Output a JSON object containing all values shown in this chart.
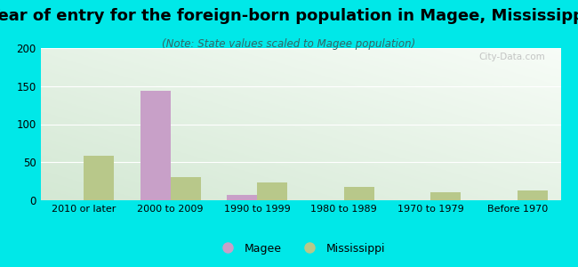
{
  "categories": [
    "2010 or later",
    "2000 to 2009",
    "1990 to 1999",
    "1980 to 1989",
    "1970 to 1979",
    "Before 1970"
  ],
  "magee_values": [
    0,
    144,
    7,
    0,
    0,
    0
  ],
  "mississippi_values": [
    58,
    30,
    23,
    18,
    11,
    13
  ],
  "magee_color": "#c8a0c8",
  "mississippi_color": "#b8c88a",
  "title": "Year of entry for the foreign-born population in Magee, Mississippi",
  "subtitle": "(Note: State values scaled to Magee population)",
  "ylim": [
    0,
    200
  ],
  "yticks": [
    0,
    50,
    100,
    150,
    200
  ],
  "bg_outer": "#00e8e8",
  "bg_plot_color1": "#d4ead4",
  "bg_plot_color2": "#f5faf5",
  "watermark": "City-Data.com",
  "title_fontsize": 13,
  "subtitle_fontsize": 8.5,
  "bar_width": 0.35
}
